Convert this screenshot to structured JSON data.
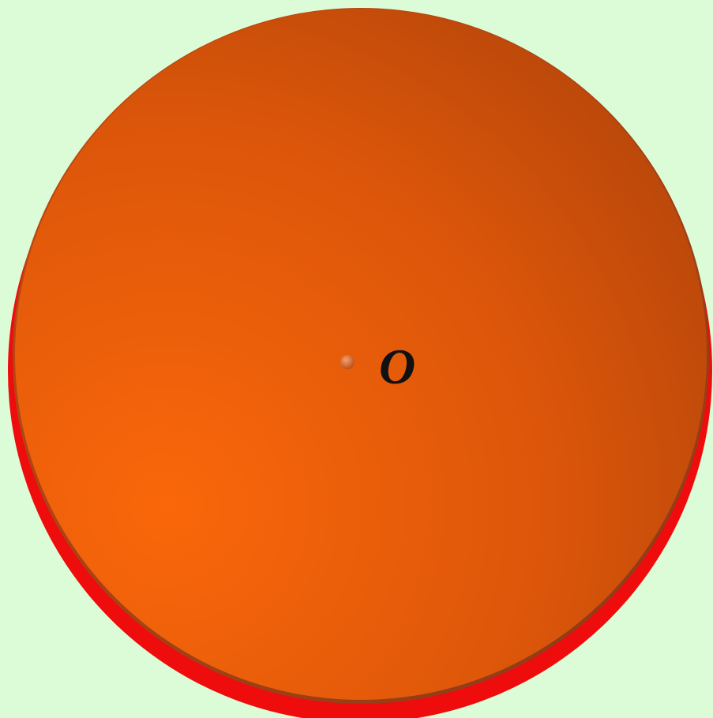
{
  "center_label": "O"
}
